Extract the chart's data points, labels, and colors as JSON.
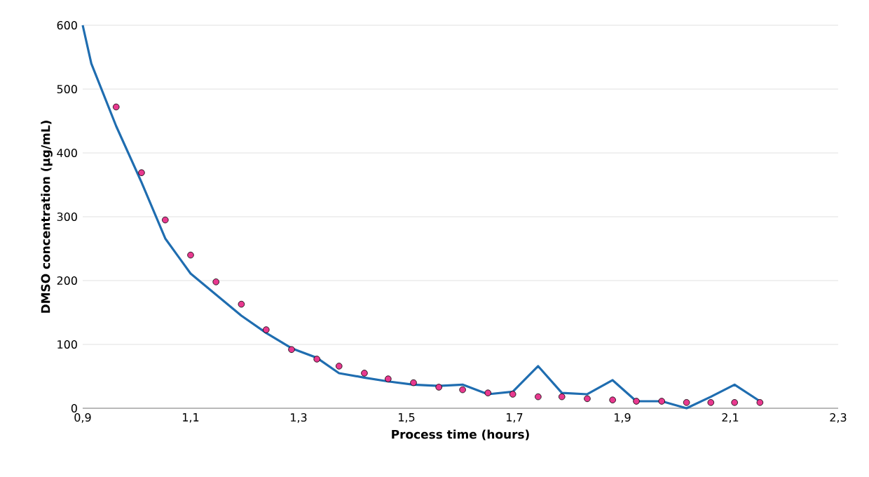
{
  "chart_data": {
    "type": "line",
    "xlabel": "Process time (hours)",
    "ylabel": "DMSO concentration (µg/mL)",
    "xlim": [
      0.9,
      2.3
    ],
    "ylim": [
      0,
      600
    ],
    "xticks": [
      {
        "value": 0.9,
        "label": "0,9"
      },
      {
        "value": 1.1,
        "label": "1,1"
      },
      {
        "value": 1.3,
        "label": "1,3"
      },
      {
        "value": 1.5,
        "label": "1,5"
      },
      {
        "value": 1.7,
        "label": "1,7"
      },
      {
        "value": 1.9,
        "label": "1,9"
      },
      {
        "value": 2.1,
        "label": "2,1"
      },
      {
        "value": 2.3,
        "label": "2,3"
      }
    ],
    "yticks": [
      0,
      100,
      200,
      300,
      400,
      500,
      600
    ],
    "grid": "y",
    "series": [
      {
        "type": "line",
        "color": "#1f6db0",
        "marker": "none",
        "line_style": "solid",
        "x": [
          0.9,
          0.916,
          0.962,
          1.009,
          1.053,
          1.1,
          1.147,
          1.194,
          1.24,
          1.287,
          1.334,
          1.375,
          1.422,
          1.466,
          1.513,
          1.56,
          1.604,
          1.651,
          1.697,
          1.744,
          1.788,
          1.835,
          1.882,
          1.926,
          1.973,
          2.019,
          2.064,
          2.108,
          2.155
        ],
        "values": [
          600,
          540,
          442,
          354,
          266,
          211,
          178,
          145,
          118,
          94,
          79,
          55,
          48,
          42,
          37,
          35,
          37,
          22,
          26,
          66,
          24,
          22,
          44,
          11,
          11,
          0,
          18,
          37,
          11
        ]
      },
      {
        "type": "scatter",
        "color": "#e8398f",
        "marker": "circle",
        "x": [
          0.962,
          1.009,
          1.053,
          1.1,
          1.147,
          1.194,
          1.24,
          1.287,
          1.334,
          1.375,
          1.422,
          1.466,
          1.513,
          1.56,
          1.604,
          1.651,
          1.697,
          1.744,
          1.788,
          1.835,
          1.882,
          1.926,
          1.973,
          2.019,
          2.064,
          2.108,
          2.155
        ],
        "values": [
          472,
          369,
          295,
          240,
          198,
          163,
          123,
          92,
          77,
          66,
          55,
          46,
          40,
          33,
          29,
          24,
          22,
          18,
          18,
          15,
          13,
          11,
          11,
          9,
          9,
          9,
          9
        ]
      }
    ]
  }
}
